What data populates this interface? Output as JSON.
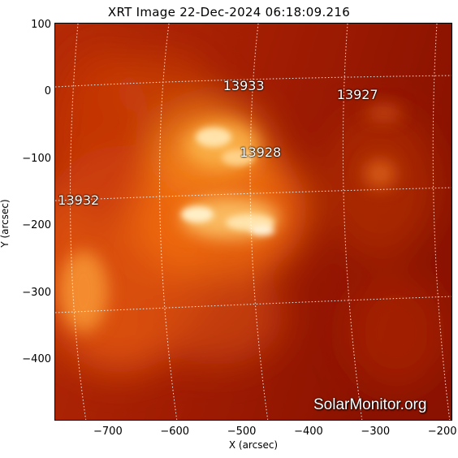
{
  "title": "XRT Image 22-Dec-2024 06:18:09.216",
  "axes": {
    "xlabel": "X (arcsec)",
    "ylabel": "Y (arcsec)",
    "xlim": [
      -780,
      -185
    ],
    "ylim": [
      -490,
      105
    ],
    "xticks": [
      "−700",
      "−600",
      "−500",
      "−400",
      "−300",
      "−200"
    ],
    "xtick_values": [
      -700,
      -600,
      -500,
      -400,
      -300,
      -200
    ],
    "yticks": [
      "100",
      "0",
      "−100",
      "−200",
      "−300",
      "−400"
    ],
    "ytick_values": [
      100,
      0,
      -100,
      -200,
      -300,
      -400
    ]
  },
  "active_regions": [
    {
      "number": "13933",
      "x": -495,
      "y": 12
    },
    {
      "number": "13927",
      "x": -325,
      "y": -2
    },
    {
      "number": "13928",
      "x": -470,
      "y": -88
    },
    {
      "number": "13932",
      "x": -742,
      "y": -160
    }
  ],
  "watermark": "SolarMonitor.org",
  "colors": {
    "background": "#9e1a02",
    "bright_core": "#ffe6b0",
    "hot_orange": "#f77a12",
    "grid": "#ffffff"
  }
}
